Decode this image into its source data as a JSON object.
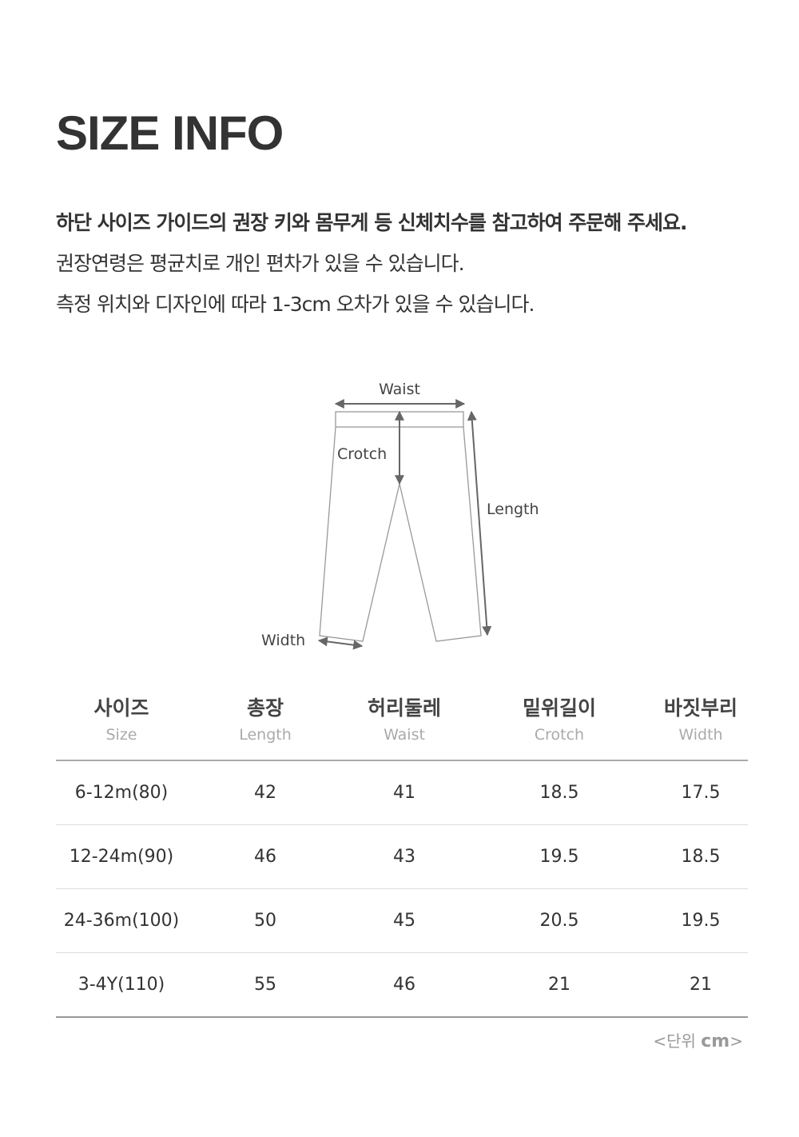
{
  "title": "SIZE INFO",
  "notes": [
    "하단 사이즈 가이드의 권장 키와 몸무게 등 신체치수를 참고하여 주문해 주세요.",
    "권장연령은 평균치로 개인 편차가 있을 수 있습니다.",
    "측정 위치와 디자인에 따라 1-3cm 오차가 있을 수 있습니다."
  ],
  "diagram": {
    "waist": "Waist",
    "crotch": "Crotch",
    "length": "Length",
    "width": "Width"
  },
  "table": {
    "columns": [
      {
        "ko": "사이즈",
        "en": "Size"
      },
      {
        "ko": "총장",
        "en": "Length"
      },
      {
        "ko": "허리둘레",
        "en": "Waist"
      },
      {
        "ko": "밑위길이",
        "en": "Crotch"
      },
      {
        "ko": "바짓부리",
        "en": "Width"
      }
    ],
    "rows": [
      [
        "6-12m(80)",
        "42",
        "41",
        "18.5",
        "17.5"
      ],
      [
        "12-24m(90)",
        "46",
        "43",
        "19.5",
        "18.5"
      ],
      [
        "24-36m(100)",
        "50",
        "45",
        "20.5",
        "19.5"
      ],
      [
        "3-4Y(110)",
        "55",
        "46",
        "21",
        "21"
      ]
    ]
  },
  "unit": {
    "prefix": "<단위 ",
    "value": "cm",
    "suffix": ">"
  }
}
